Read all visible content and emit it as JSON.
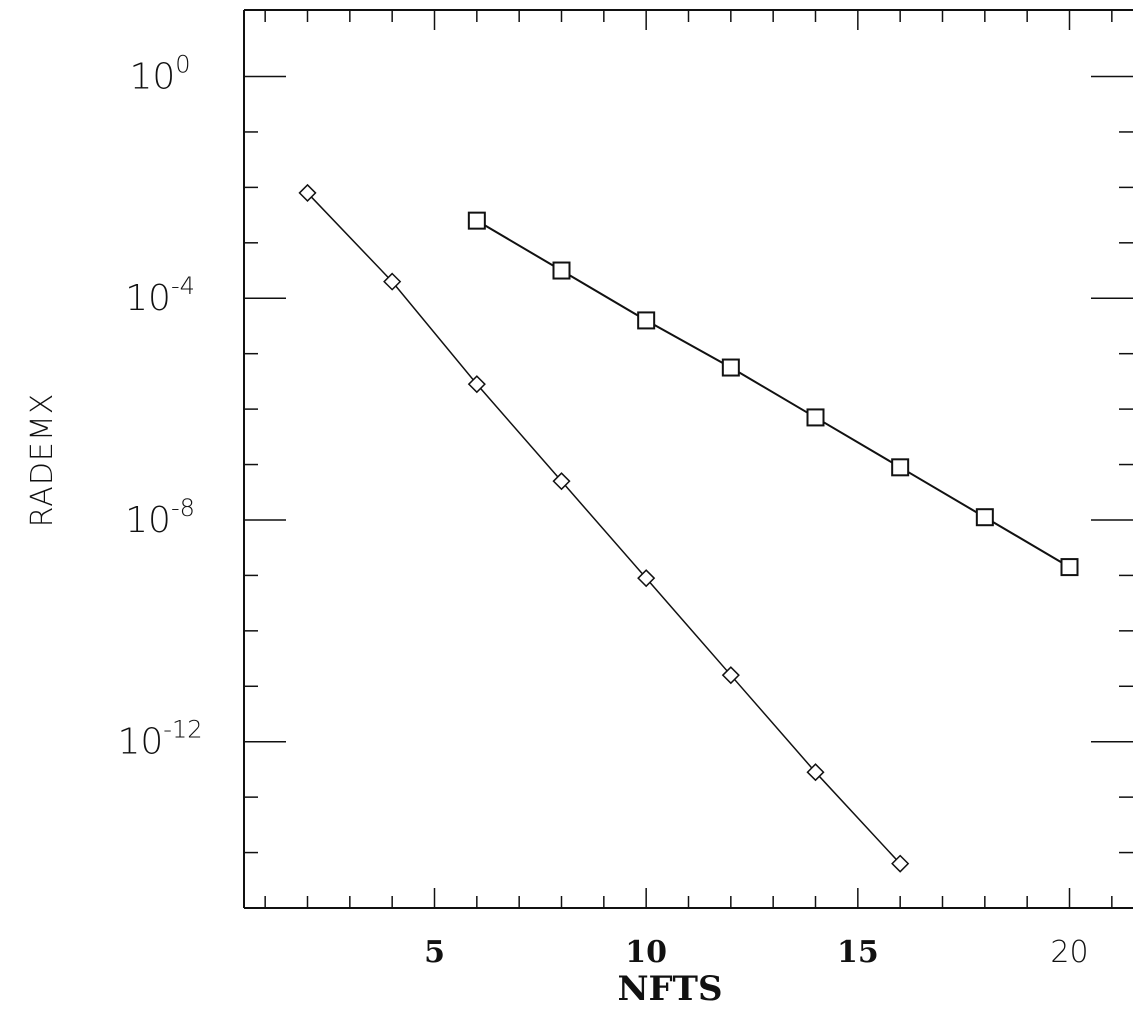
{
  "chart_data": {
    "type": "line",
    "xlabel": "NFTS",
    "ylabel": "RADEMX",
    "xlim": [
      0.5,
      21.5
    ],
    "ylim": [
      -15,
      1.2
    ],
    "yscale": "log10",
    "x_ticks": [
      {
        "value": 5,
        "label": "5",
        "style": "bold"
      },
      {
        "value": 10,
        "label": "10",
        "style": "bold"
      },
      {
        "value": 15,
        "label": "15",
        "style": "bold"
      },
      {
        "value": 20,
        "label": "20",
        "style": "thin"
      }
    ],
    "y_ticks": [
      {
        "exp": 0,
        "base": "10",
        "sup": "0"
      },
      {
        "exp": -4,
        "base": "10",
        "sup": "-4"
      },
      {
        "exp": -8,
        "base": "10",
        "sup": "-8"
      },
      {
        "exp": -12,
        "base": "10",
        "sup": "-12"
      }
    ],
    "grid": false,
    "series": [
      {
        "marker": "diamond",
        "x": [
          2,
          4,
          6,
          8,
          10,
          12,
          14,
          16
        ],
        "y_log10": [
          -2.1,
          -3.7,
          -5.55,
          -7.3,
          -9.05,
          -10.8,
          -12.55,
          -14.2
        ]
      },
      {
        "marker": "square",
        "x": [
          6,
          8,
          10,
          12,
          14,
          16,
          18,
          20
        ],
        "y_log10": [
          -2.6,
          -3.5,
          -4.4,
          -5.25,
          -6.15,
          -7.05,
          -7.95,
          -8.85
        ]
      }
    ]
  }
}
